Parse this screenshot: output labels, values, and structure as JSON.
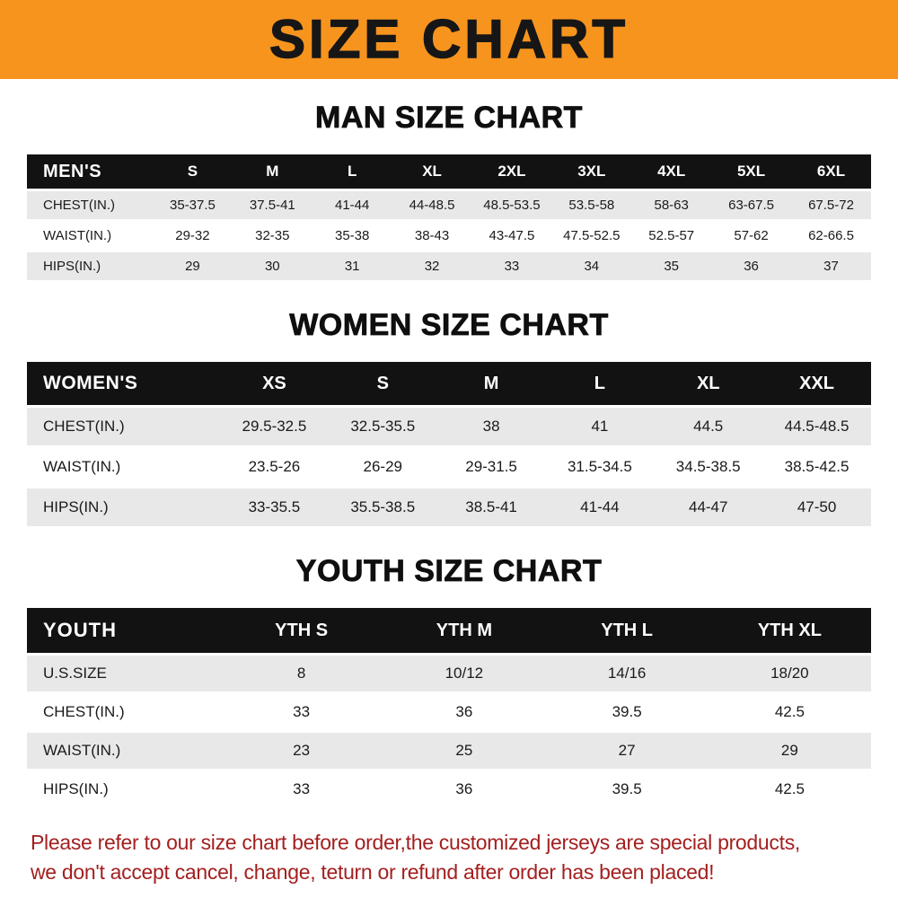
{
  "banner": {
    "title": "SIZE CHART"
  },
  "colors": {
    "accent-orange": "#F7941E",
    "header-black": "#121212",
    "row-stripe-gray": "#E8E8E8",
    "disclaimer-red": "#A31F1F"
  },
  "chart_data": [
    {
      "type": "table",
      "title": "MAN SIZE CHART",
      "columns": [
        "MEN'S",
        "S",
        "M",
        "L",
        "XL",
        "2XL",
        "3XL",
        "4XL",
        "5XL",
        "6XL"
      ],
      "rows": [
        [
          "CHEST(IN.)",
          "35-37.5",
          "37.5-41",
          "41-44",
          "44-48.5",
          "48.5-53.5",
          "53.5-58",
          "58-63",
          "63-67.5",
          "67.5-72"
        ],
        [
          "WAIST(IN.)",
          "29-32",
          "32-35",
          "35-38",
          "38-43",
          "43-47.5",
          "47.5-52.5",
          "52.5-57",
          "57-62",
          "62-66.5"
        ],
        [
          "HIPS(IN.)",
          "29",
          "30",
          "31",
          "32",
          "33",
          "34",
          "35",
          "36",
          "37"
        ]
      ]
    },
    {
      "type": "table",
      "title": "WOMEN SIZE CHART",
      "columns": [
        "WOMEN'S",
        "XS",
        "S",
        "M",
        "L",
        "XL",
        "XXL"
      ],
      "rows": [
        [
          "CHEST(IN.)",
          "29.5-32.5",
          "32.5-35.5",
          "38",
          "41",
          "44.5",
          "44.5-48.5"
        ],
        [
          "WAIST(IN.)",
          "23.5-26",
          "26-29",
          "29-31.5",
          "31.5-34.5",
          "34.5-38.5",
          "38.5-42.5"
        ],
        [
          "HIPS(IN.)",
          "33-35.5",
          "35.5-38.5",
          "38.5-41",
          "41-44",
          "44-47",
          "47-50"
        ]
      ]
    },
    {
      "type": "table",
      "title": "YOUTH SIZE CHART",
      "columns": [
        "YOUTH",
        "YTH S",
        "YTH M",
        "YTH L",
        "YTH XL"
      ],
      "rows": [
        [
          "U.S.SIZE",
          "8",
          "10/12",
          "14/16",
          "18/20"
        ],
        [
          "CHEST(IN.)",
          "33",
          "36",
          "39.5",
          "42.5"
        ],
        [
          "WAIST(IN.)",
          "23",
          "25",
          "27",
          "29"
        ],
        [
          "HIPS(IN.)",
          "33",
          "36",
          "39.5",
          "42.5"
        ]
      ]
    }
  ],
  "disclaimer": {
    "line1": "Please refer to our size chart before order,the customized jerseys are special products,",
    "line2": "we don't accept cancel, change, teturn or refund after order has been placed!"
  }
}
